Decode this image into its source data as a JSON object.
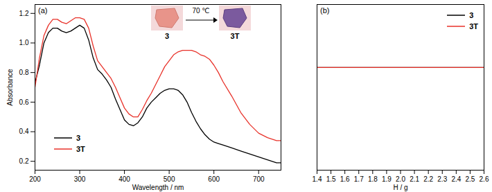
{
  "chart_data": [
    {
      "type": "line",
      "x_label": "Wavelength / nm",
      "y_label": "Absorbance",
      "annotations": [
        "(a)",
        "3",
        "70 ℃",
        "3T"
      ],
      "x": [
        200,
        210,
        220,
        230,
        240,
        250,
        260,
        270,
        280,
        290,
        300,
        310,
        320,
        330,
        340,
        350,
        360,
        370,
        380,
        390,
        400,
        410,
        420,
        430,
        440,
        450,
        460,
        470,
        480,
        490,
        500,
        510,
        520,
        530,
        540,
        550,
        560,
        570,
        580,
        590,
        600,
        610,
        620,
        640,
        660,
        680,
        700,
        720,
        740,
        750
      ],
      "series": [
        {
          "name": "3",
          "color": "#000000",
          "values": [
            0.73,
            0.85,
            1.0,
            1.07,
            1.1,
            1.1,
            1.08,
            1.07,
            1.08,
            1.1,
            1.12,
            1.1,
            1.02,
            0.9,
            0.82,
            0.79,
            0.75,
            0.7,
            0.62,
            0.55,
            0.48,
            0.45,
            0.44,
            0.46,
            0.5,
            0.56,
            0.6,
            0.63,
            0.66,
            0.68,
            0.69,
            0.69,
            0.68,
            0.65,
            0.6,
            0.53,
            0.47,
            0.42,
            0.38,
            0.35,
            0.33,
            0.32,
            0.31,
            0.29,
            0.27,
            0.25,
            0.23,
            0.21,
            0.19,
            0.19
          ]
        },
        {
          "name": "3T",
          "color": "#e8322a",
          "values": [
            0.7,
            0.9,
            1.05,
            1.12,
            1.16,
            1.16,
            1.14,
            1.13,
            1.15,
            1.17,
            1.17,
            1.16,
            1.1,
            0.98,
            0.88,
            0.84,
            0.8,
            0.76,
            0.7,
            0.63,
            0.56,
            0.52,
            0.5,
            0.5,
            0.55,
            0.61,
            0.66,
            0.72,
            0.78,
            0.84,
            0.88,
            0.92,
            0.94,
            0.95,
            0.95,
            0.95,
            0.94,
            0.92,
            0.91,
            0.89,
            0.85,
            0.8,
            0.74,
            0.64,
            0.53,
            0.45,
            0.39,
            0.36,
            0.34,
            0.34
          ]
        }
      ],
      "xlim": [
        200,
        750
      ],
      "xticks": [
        200,
        300,
        400,
        500,
        600,
        700
      ],
      "ylim": [
        0.14,
        1.26
      ],
      "yticks": [
        0.2,
        0.4,
        0.6,
        0.8,
        {
          "value": 1,
          "label": "1.0"
        },
        1.2
      ],
      "legend": "bottom-left"
    },
    {
      "type": "line",
      "x_label": "H / g",
      "annotations": [
        "(b)"
      ],
      "x": [
        1.4,
        2.6
      ],
      "series": [
        {
          "name": "3",
          "color": "#000000",
          "values": [
            0.62,
            0.62
          ]
        },
        {
          "name": "3T",
          "color": "#e8322a",
          "values": [
            0.62,
            0.62
          ]
        }
      ],
      "xlim": [
        1.4,
        2.6
      ],
      "xticks": [
        1.4,
        1.5,
        1.6,
        1.7,
        1.8,
        1.9,
        {
          "value": 2,
          "label": "2.0"
        },
        2.1,
        2.2,
        2.3,
        2.4,
        2.5,
        2.6
      ],
      "ylim": [
        0,
        1
      ],
      "yticks": [],
      "tick_labels": "x",
      "legend": "top-right"
    }
  ]
}
